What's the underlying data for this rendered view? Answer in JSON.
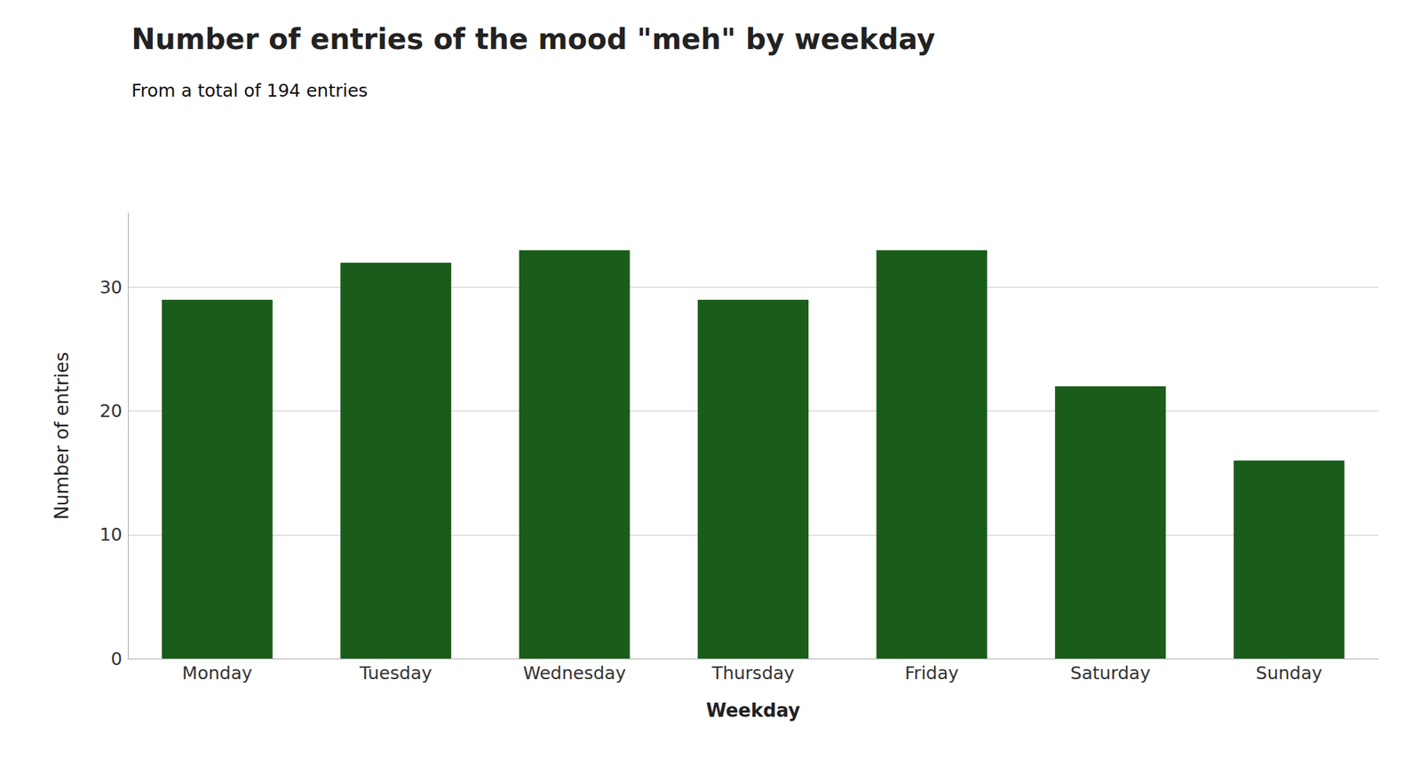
{
  "chart_data": {
    "type": "bar",
    "title": "Number of entries of the mood \"meh\" by weekday",
    "subtitle": "From a total of 194 entries",
    "xlabel": "Weekday",
    "ylabel": "Number of entries",
    "categories": [
      "Monday",
      "Tuesday",
      "Wednesday",
      "Thursday",
      "Friday",
      "Saturday",
      "Sunday"
    ],
    "values": [
      29,
      32,
      33,
      29,
      33,
      22,
      16
    ],
    "color": "#1a5c1a",
    "ylim": [
      0,
      36
    ],
    "yticks": [
      0,
      10,
      20,
      30
    ],
    "grid": true
  }
}
